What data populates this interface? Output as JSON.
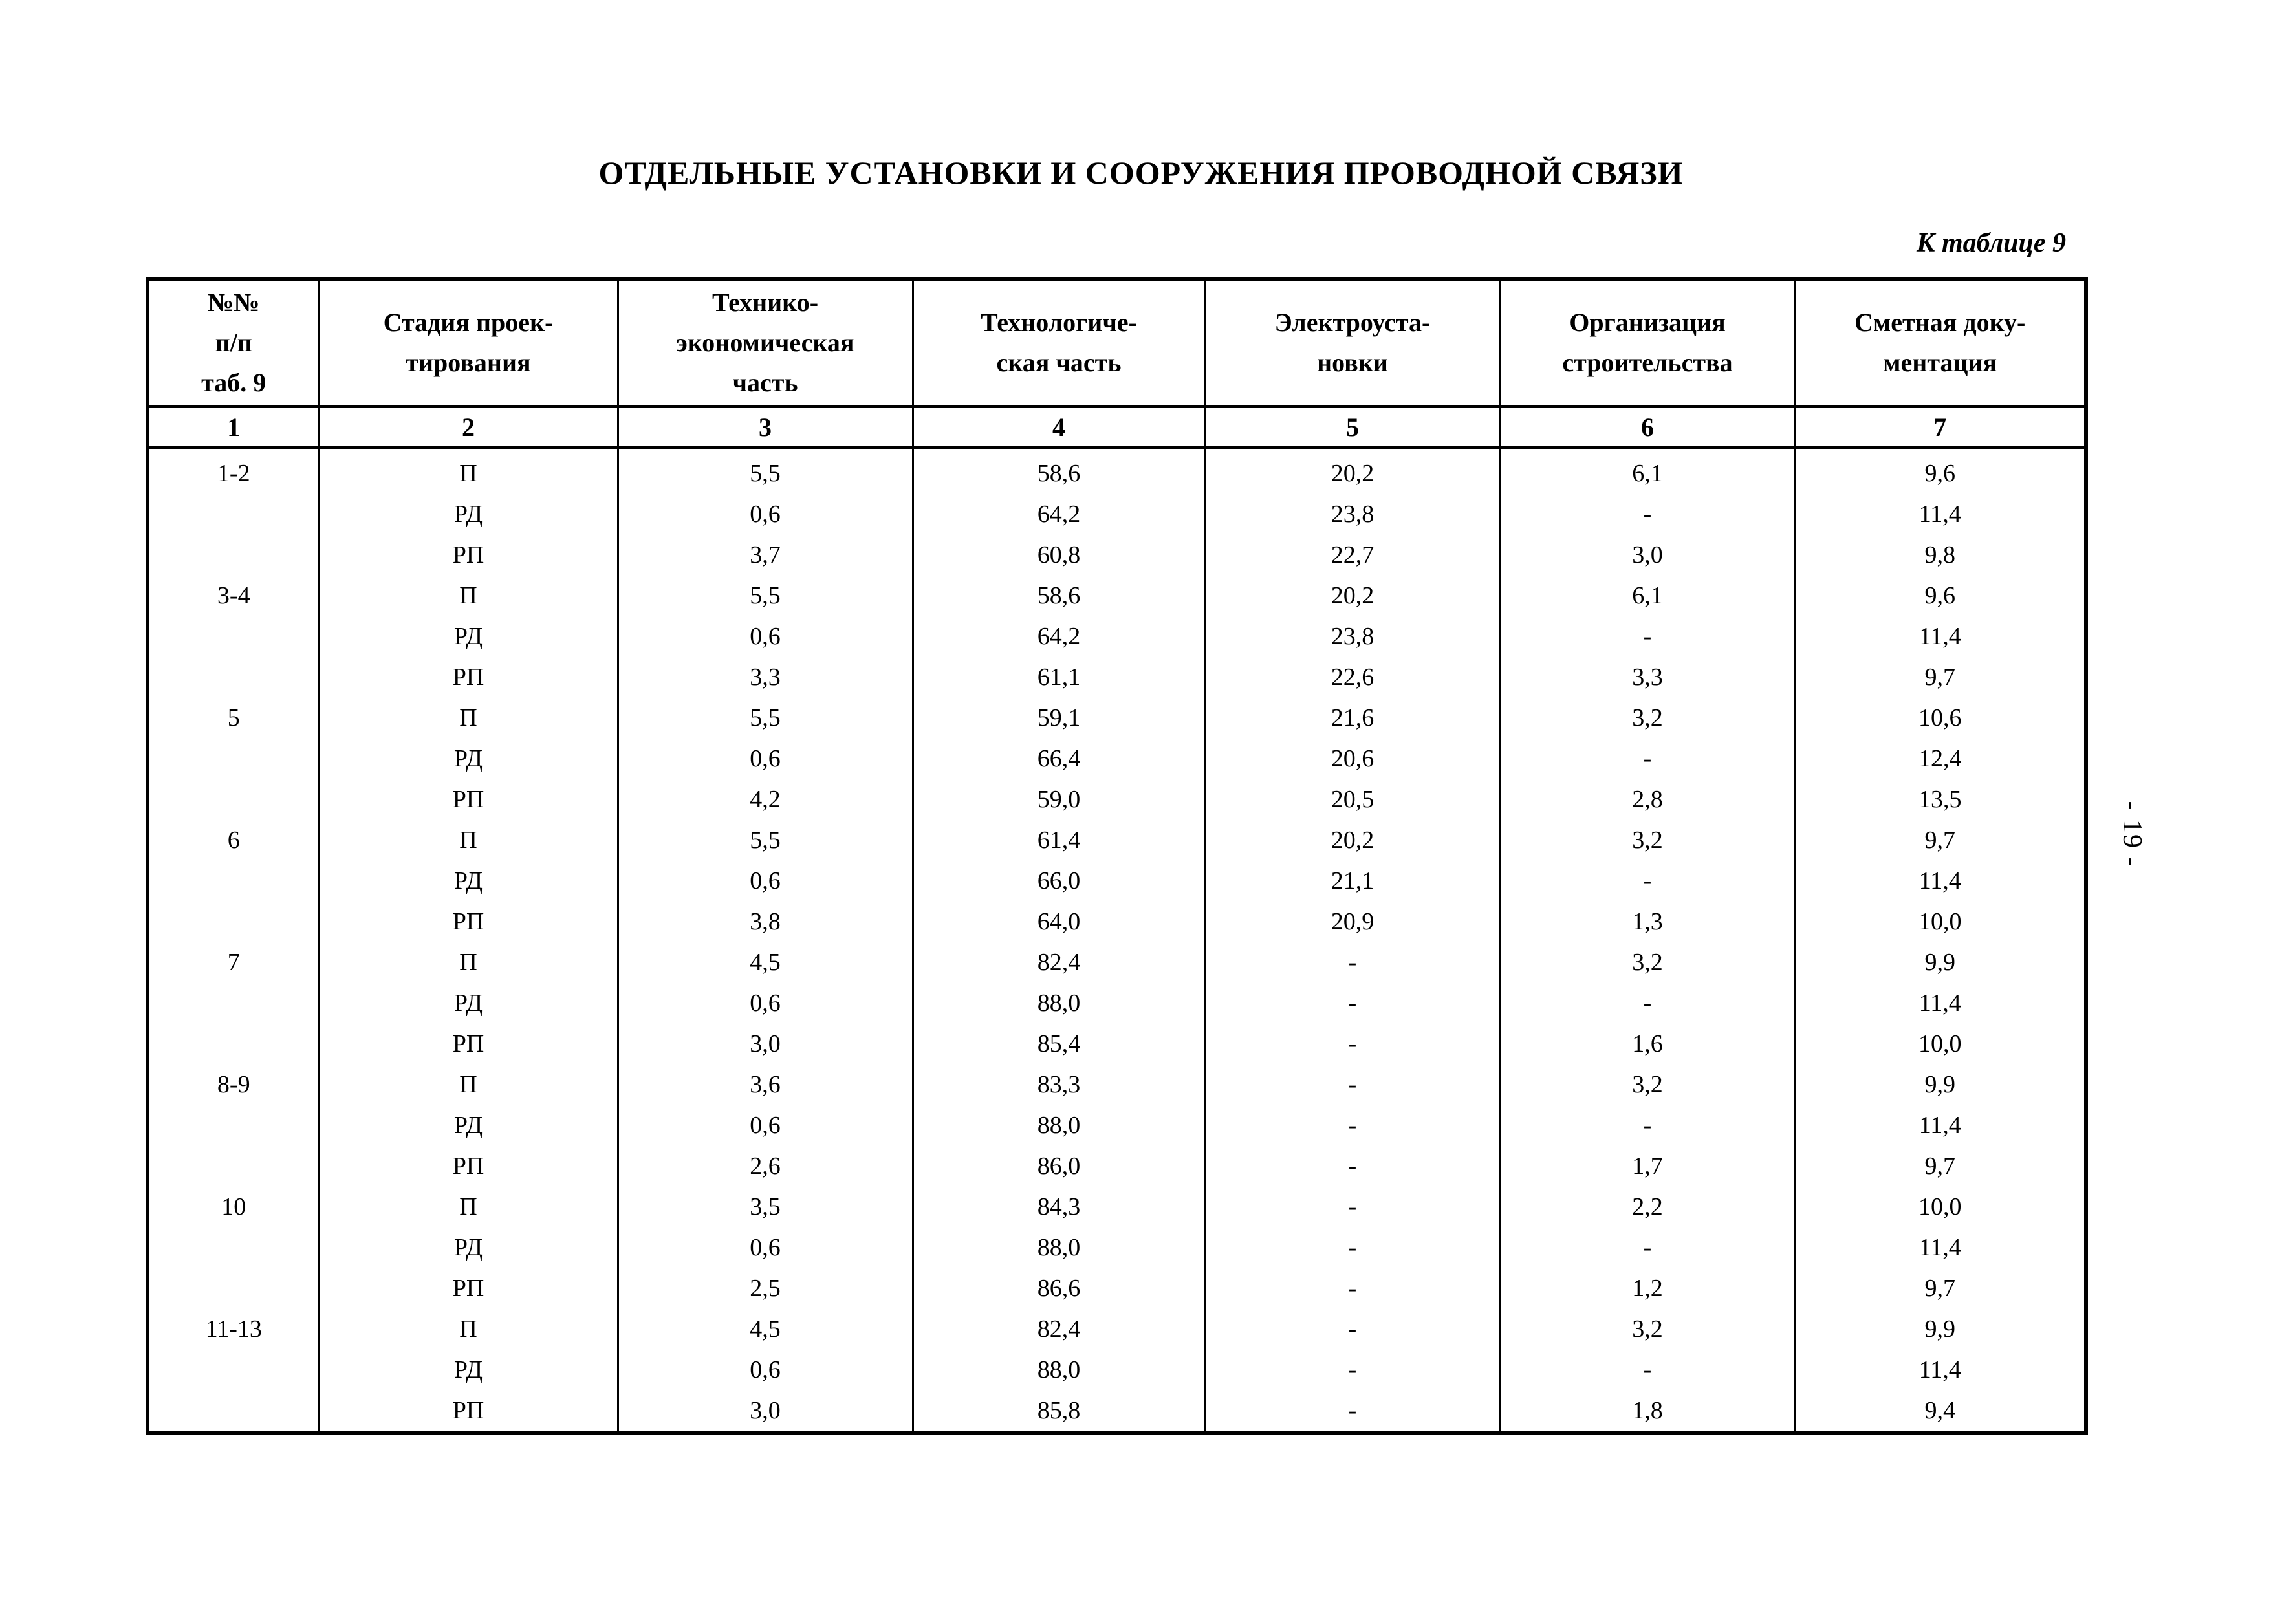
{
  "page": {
    "title": "ОТДЕЛЬНЫЕ УСТАНОВКИ И СООРУЖЕНИЯ ПРОВОДНОЙ СВЯЗИ",
    "caption": "К таблице 9",
    "page_number": "- 19 -"
  },
  "table": {
    "columns": [
      {
        "label": "№№\nп/п\nтаб. 9",
        "index": "1"
      },
      {
        "label": "Стадия проек-\nтирования",
        "index": "2"
      },
      {
        "label": "Технико-\nэкономическая\nчасть",
        "index": "3"
      },
      {
        "label": "Технологиче-\nская часть",
        "index": "4"
      },
      {
        "label": "Электроуста-\nновки",
        "index": "5"
      },
      {
        "label": "Организация\nстроительства",
        "index": "6"
      },
      {
        "label": "Сметная доку-\nментация",
        "index": "7"
      }
    ],
    "rows": [
      {
        "group": "1-2",
        "stage": "П",
        "values": [
          "5,5",
          "58,6",
          "20,2",
          "6,1",
          "9,6"
        ]
      },
      {
        "group": "",
        "stage": "РД",
        "values": [
          "0,6",
          "64,2",
          "23,8",
          "-",
          "11,4"
        ]
      },
      {
        "group": "",
        "stage": "РП",
        "values": [
          "3,7",
          "60,8",
          "22,7",
          "3,0",
          "9,8"
        ]
      },
      {
        "group": "3-4",
        "stage": "П",
        "values": [
          "5,5",
          "58,6",
          "20,2",
          "6,1",
          "9,6"
        ]
      },
      {
        "group": "",
        "stage": "РД",
        "values": [
          "0,6",
          "64,2",
          "23,8",
          "-",
          "11,4"
        ]
      },
      {
        "group": "",
        "stage": "РП",
        "values": [
          "3,3",
          "61,1",
          "22,6",
          "3,3",
          "9,7"
        ]
      },
      {
        "group": "5",
        "stage": "П",
        "values": [
          "5,5",
          "59,1",
          "21,6",
          "3,2",
          "10,6"
        ]
      },
      {
        "group": "",
        "stage": "РД",
        "values": [
          "0,6",
          "66,4",
          "20,6",
          "-",
          "12,4"
        ]
      },
      {
        "group": "",
        "stage": "РП",
        "values": [
          "4,2",
          "59,0",
          "20,5",
          "2,8",
          "13,5"
        ]
      },
      {
        "group": "6",
        "stage": "П",
        "values": [
          "5,5",
          "61,4",
          "20,2",
          "3,2",
          "9,7"
        ]
      },
      {
        "group": "",
        "stage": "РД",
        "values": [
          "0,6",
          "66,0",
          "21,1",
          "-",
          "11,4"
        ]
      },
      {
        "group": "",
        "stage": "РП",
        "values": [
          "3,8",
          "64,0",
          "20,9",
          "1,3",
          "10,0"
        ]
      },
      {
        "group": "7",
        "stage": "П",
        "values": [
          "4,5",
          "82,4",
          "-",
          "3,2",
          "9,9"
        ]
      },
      {
        "group": "",
        "stage": "РД",
        "values": [
          "0,6",
          "88,0",
          "-",
          "-",
          "11,4"
        ]
      },
      {
        "group": "",
        "stage": "РП",
        "values": [
          "3,0",
          "85,4",
          "-",
          "1,6",
          "10,0"
        ]
      },
      {
        "group": "8-9",
        "stage": "П",
        "values": [
          "3,6",
          "83,3",
          "-",
          "3,2",
          "9,9"
        ]
      },
      {
        "group": "",
        "stage": "РД",
        "values": [
          "0,6",
          "88,0",
          "-",
          "-",
          "11,4"
        ]
      },
      {
        "group": "",
        "stage": "РП",
        "values": [
          "2,6",
          "86,0",
          "-",
          "1,7",
          "9,7"
        ]
      },
      {
        "group": "10",
        "stage": "П",
        "values": [
          "3,5",
          "84,3",
          "-",
          "2,2",
          "10,0"
        ]
      },
      {
        "group": "",
        "stage": "РД",
        "values": [
          "0,6",
          "88,0",
          "-",
          "-",
          "11,4"
        ]
      },
      {
        "group": "",
        "stage": "РП",
        "values": [
          "2,5",
          "86,6",
          "-",
          "1,2",
          "9,7"
        ]
      },
      {
        "group": "11-13",
        "stage": "П",
        "values": [
          "4,5",
          "82,4",
          "-",
          "3,2",
          "9,9"
        ]
      },
      {
        "group": "",
        "stage": "РД",
        "values": [
          "0,6",
          "88,0",
          "-",
          "-",
          "11,4"
        ]
      },
      {
        "group": "",
        "stage": "РП",
        "values": [
          "3,0",
          "85,8",
          "-",
          "1,8",
          "9,4"
        ]
      }
    ]
  }
}
